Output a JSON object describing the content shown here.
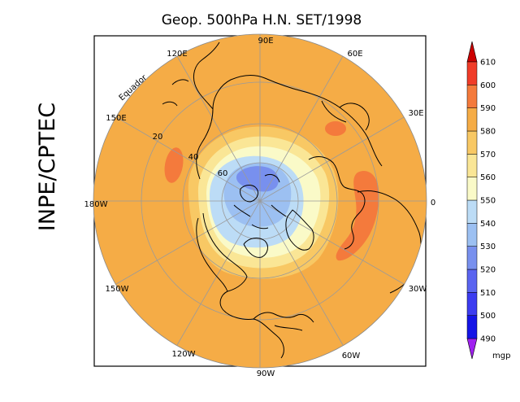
{
  "title": "Geop. 500hPa H.N. SET/1998",
  "side_label": "INPE/CPTEC",
  "longitude_labels": {
    "lon_90e": "90E",
    "lon_60e": "60E",
    "lon_120e": "120E",
    "lon_30e": "30E",
    "lon_150e": "150E",
    "lon_180w": "180W",
    "lon_0": "0",
    "lon_150w": "150W",
    "lon_30w": "30W",
    "lon_120w": "120W",
    "lon_60w": "60W",
    "lon_90w": "90W"
  },
  "latitude_labels": {
    "lat_equador": "Equador",
    "lat_20": "20",
    "lat_40": "40",
    "lat_60": "60"
  },
  "colorbar": {
    "unit": "mgp",
    "levels": [
      "490",
      "500",
      "510",
      "520",
      "530",
      "540",
      "550",
      "560",
      "570",
      "580",
      "590",
      "600",
      "610"
    ],
    "colors": [
      "#a020f0",
      "#1414e6",
      "#3c3cf0",
      "#5a64f0",
      "#7890ee",
      "#9cc0f2",
      "#bcdcf6",
      "#fafac8",
      "#fae696",
      "#f8c864",
      "#f5ac46",
      "#f47a3c",
      "#f03c28",
      "#cc0000"
    ]
  },
  "field_colors": {
    "background_580": "#f5ac46",
    "band_570": "#f8c864",
    "band_560": "#fae696",
    "band_550": "#fafac8",
    "band_540": "#bcdcf6",
    "band_530": "#9cc0f2",
    "band_520": "#7890ee",
    "highs_590": "#f47a3c"
  }
}
